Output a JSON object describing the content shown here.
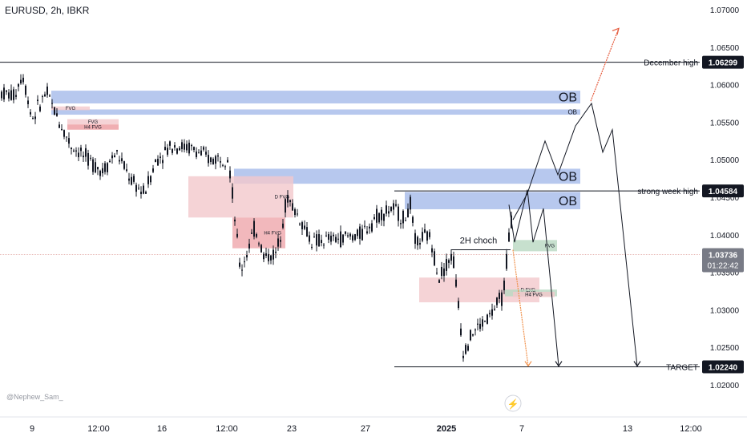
{
  "header": {
    "symbol_line": "EURUSD, 2h, IBKR"
  },
  "watermark": "@Nephew_Sam_",
  "colors": {
    "candle": "#131722",
    "ob_fill": "#9fb6e8",
    "fvg_fill": "#f3c8cc",
    "fvg_dark": "#ec9a9f",
    "fvg_green": "#b9d8c2",
    "path": "#131722",
    "bull_arrow": "#e55a3c",
    "bear_arrow": "#f0904a",
    "axis_text": "#131722",
    "price_tag_bg": "#131722",
    "current_tag_bg": "#787b86"
  },
  "chart_data": {
    "type": "candlestick",
    "title": "EURUSD, 2h, IBKR",
    "ylim": [
      1.018,
      1.0715
    ],
    "y_ticks": [
      "1.07000",
      "1.06500",
      "1.06000",
      "1.05500",
      "1.05000",
      "1.04500",
      "1.04000",
      "1.03500",
      "1.03000",
      "1.02500",
      "1.02000"
    ],
    "x_ticks": [
      "9",
      "12:00",
      "16",
      "12:00",
      "23",
      "27",
      "2025",
      "7",
      "13",
      "12:00"
    ],
    "price_tags": [
      {
        "label": "December high",
        "value": "1.06299"
      },
      {
        "label": "strong week high",
        "value": "1.04584"
      },
      {
        "label": "TARGET",
        "value": "1.02240"
      }
    ],
    "current_price": {
      "value": "1.03736",
      "countdown": "01:22:42"
    },
    "zones": [
      {
        "label": "OB",
        "price_top": 1.0592,
        "price_bottom": 1.0575
      },
      {
        "label": "OB",
        "price_top": 1.0567,
        "price_bottom": 1.056
      },
      {
        "label": "OB",
        "price_top": 1.0488,
        "price_bottom": 1.0468
      },
      {
        "label": "OB",
        "price_top": 1.0457,
        "price_bottom": 1.0434
      },
      {
        "label": "FVG",
        "price_top": 1.0571,
        "price_bottom": 1.0566
      },
      {
        "label": "FVG",
        "price_top": 1.0554,
        "price_bottom": 1.0547
      },
      {
        "label": "H4 FVG",
        "price_top": 1.0547,
        "price_bottom": 1.054
      },
      {
        "label": "D FVG",
        "price_top": 1.0478,
        "price_bottom": 1.0423
      },
      {
        "label": "H4 FVG",
        "price_top": 1.0423,
        "price_bottom": 1.0382
      },
      {
        "label": "FVG",
        "price_top": 1.0393,
        "price_bottom": 1.0378
      },
      {
        "label": "D FVG",
        "price_top": 1.0343,
        "price_bottom": 1.031
      },
      {
        "label": "FVG",
        "price_top": 1.0327,
        "price_bottom": 1.0318
      },
      {
        "label": "H4 FVG",
        "price_top": 1.0324,
        "price_bottom": 1.0317
      }
    ],
    "annotations": [
      {
        "text": "2H choch",
        "price": 1.038
      }
    ]
  }
}
